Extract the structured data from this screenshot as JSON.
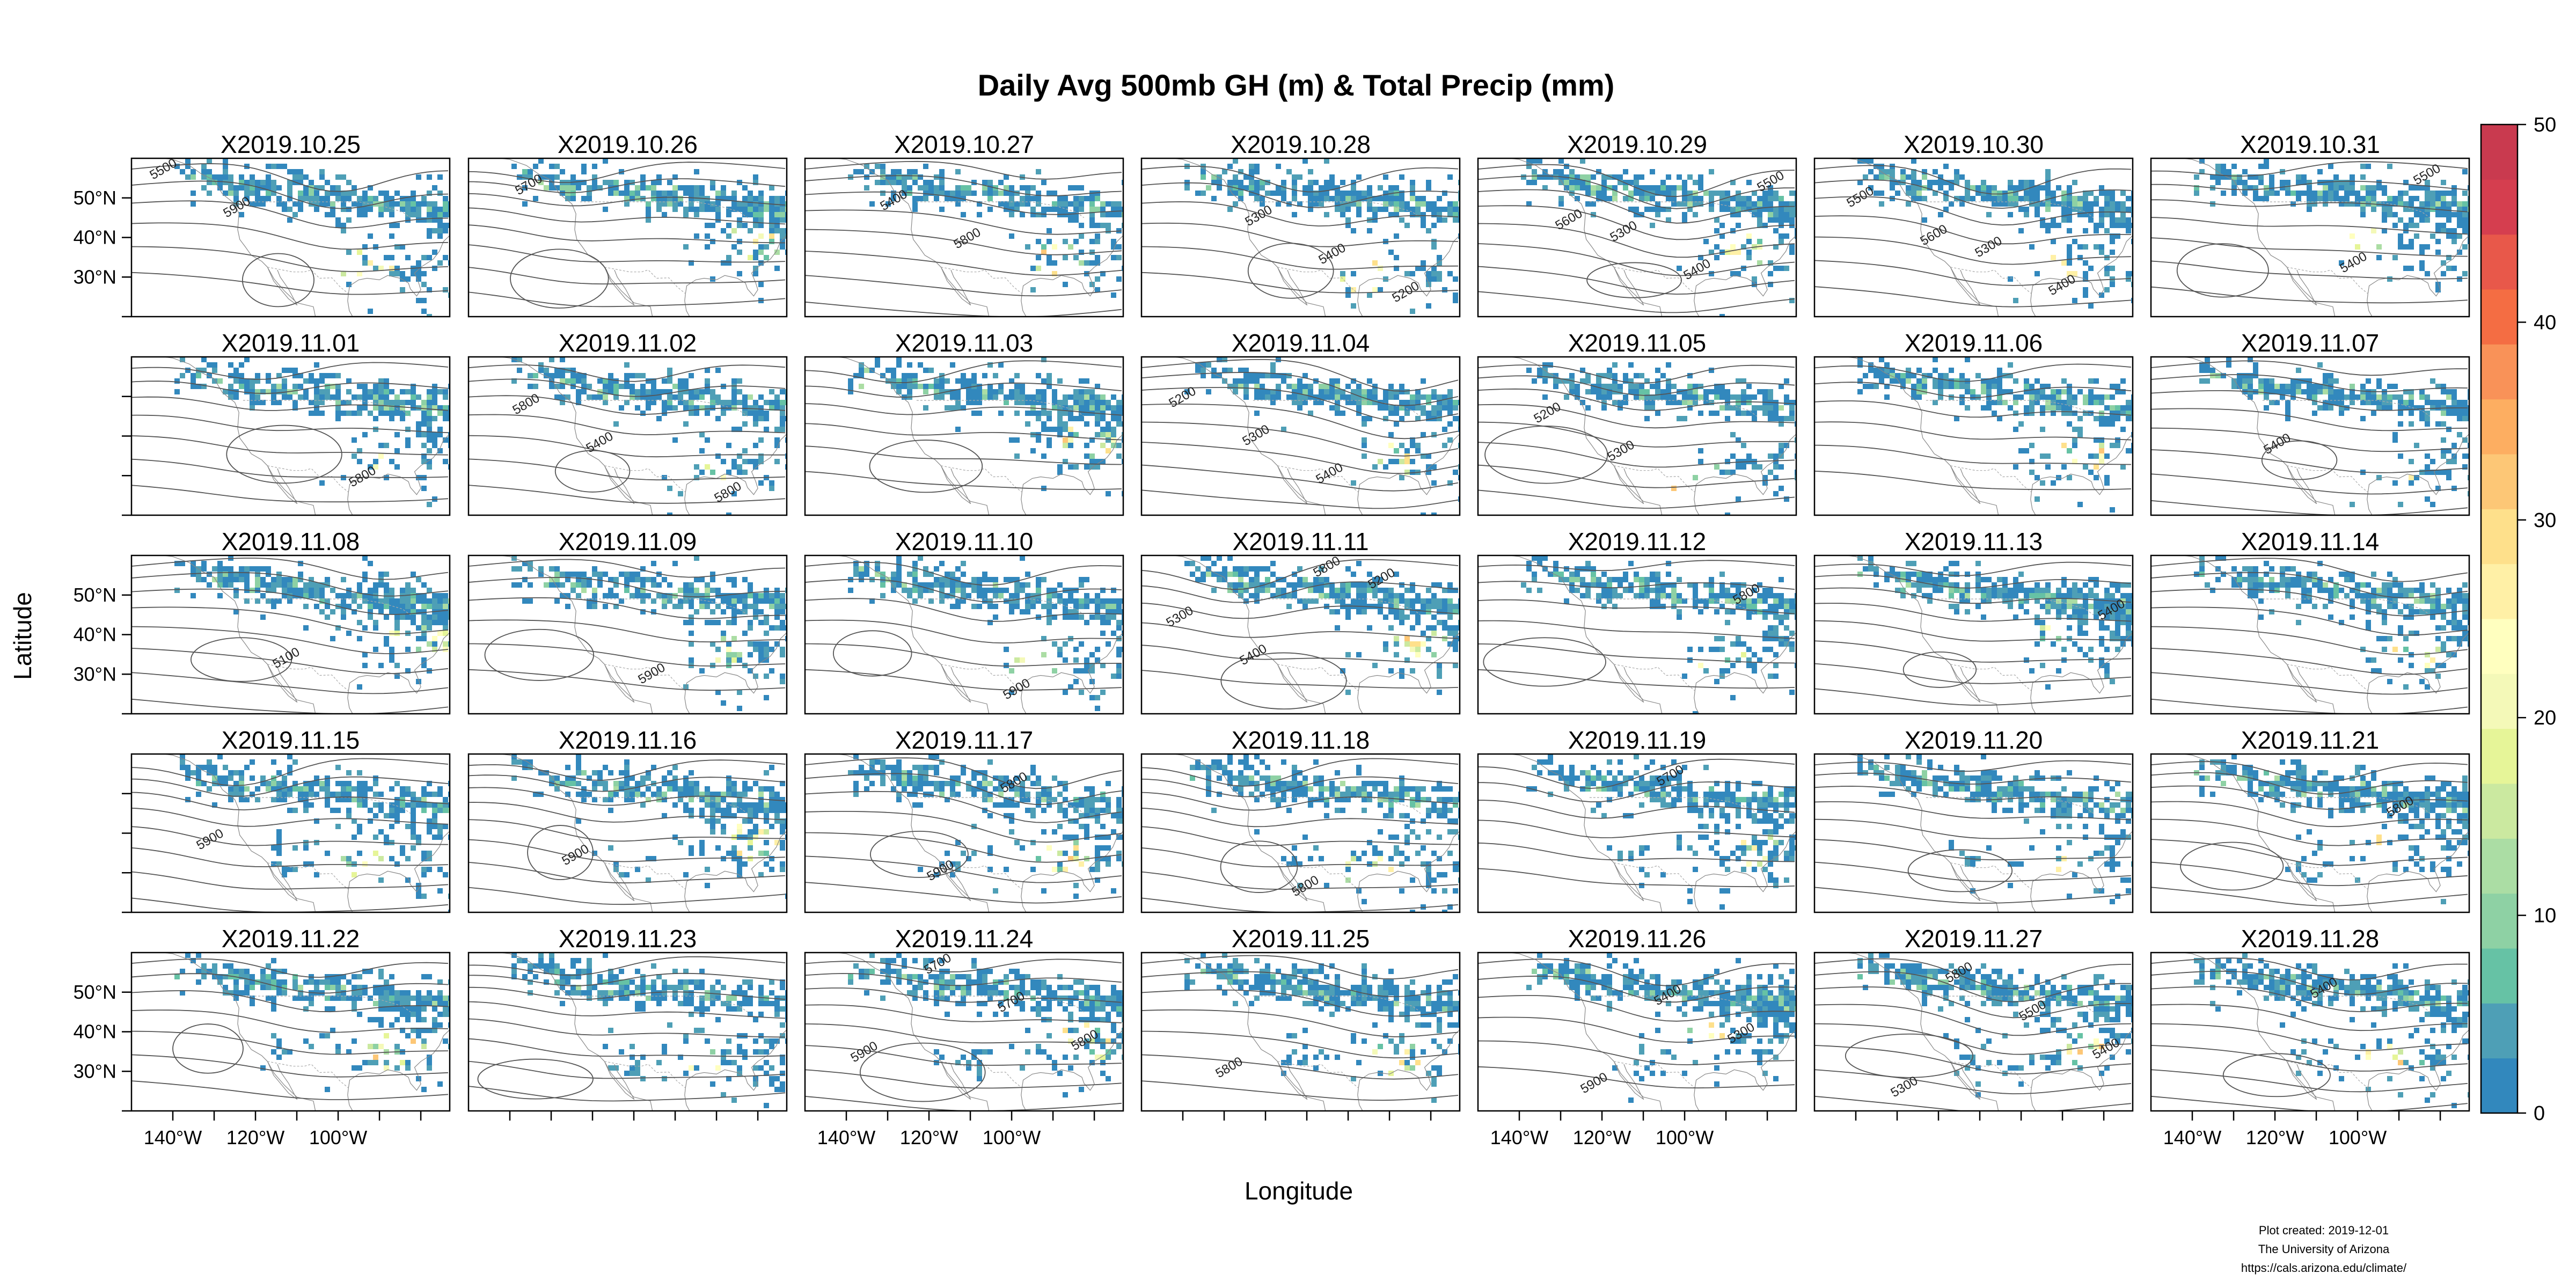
{
  "title": "Daily Avg 500mb GH (m) & Total Precip (mm)",
  "ylabel": "Latitude",
  "xlabel": "Longitude",
  "panels": [
    {
      "date": "X2019.10.25",
      "contours": [
        "5500",
        "5900"
      ]
    },
    {
      "date": "X2019.10.26",
      "contours": [
        "5700"
      ]
    },
    {
      "date": "X2019.10.27",
      "contours": [
        "5400",
        "5800"
      ]
    },
    {
      "date": "X2019.10.28",
      "contours": [
        "5300",
        "5400",
        "5200"
      ]
    },
    {
      "date": "X2019.10.29",
      "contours": [
        "5300",
        "5400",
        "5500",
        "5600"
      ]
    },
    {
      "date": "X2019.10.30",
      "contours": [
        "5300",
        "5400",
        "5500",
        "5600"
      ]
    },
    {
      "date": "X2019.10.31",
      "contours": [
        "5400",
        "5500"
      ]
    },
    {
      "date": "X2019.11.01",
      "contours": [
        "5800"
      ]
    },
    {
      "date": "X2019.11.02",
      "contours": [
        "5800",
        "5800",
        "5400"
      ]
    },
    {
      "date": "X2019.11.03",
      "contours": []
    },
    {
      "date": "X2019.11.04",
      "contours": [
        "5200",
        "5300",
        "5400"
      ]
    },
    {
      "date": "X2019.11.05",
      "contours": [
        "5200",
        "5300"
      ]
    },
    {
      "date": "X2019.11.06",
      "contours": []
    },
    {
      "date": "X2019.11.07",
      "contours": [
        "5400"
      ]
    },
    {
      "date": "X2019.11.08",
      "contours": [
        "5100"
      ]
    },
    {
      "date": "X2019.11.09",
      "contours": [
        "5900"
      ]
    },
    {
      "date": "X2019.11.10",
      "contours": [
        "5900"
      ]
    },
    {
      "date": "X2019.11.11",
      "contours": [
        "5200",
        "5300",
        "5400",
        "5800"
      ]
    },
    {
      "date": "X2019.11.12",
      "contours": [
        "5800"
      ]
    },
    {
      "date": "X2019.11.13",
      "contours": [
        "5400"
      ]
    },
    {
      "date": "X2019.11.14",
      "contours": []
    },
    {
      "date": "X2019.11.15",
      "contours": [
        "5900"
      ]
    },
    {
      "date": "X2019.11.16",
      "contours": [
        "5900"
      ]
    },
    {
      "date": "X2019.11.17",
      "contours": [
        "5900",
        "5800"
      ]
    },
    {
      "date": "X2019.11.18",
      "contours": [
        "5800"
      ]
    },
    {
      "date": "X2019.11.19",
      "contours": [
        "5700"
      ]
    },
    {
      "date": "X2019.11.20",
      "contours": []
    },
    {
      "date": "X2019.11.21",
      "contours": [
        "5800"
      ]
    },
    {
      "date": "X2019.11.22",
      "contours": []
    },
    {
      "date": "X2019.11.23",
      "contours": []
    },
    {
      "date": "X2019.11.24",
      "contours": [
        "5900",
        "5700",
        "5700",
        "5800"
      ]
    },
    {
      "date": "X2019.11.25",
      "contours": [
        "5800"
      ]
    },
    {
      "date": "X2019.11.26",
      "contours": [
        "5900",
        "5400",
        "5300"
      ]
    },
    {
      "date": "X2019.11.27",
      "contours": [
        "5800",
        "5500",
        "5400",
        "5300"
      ]
    },
    {
      "date": "X2019.11.28",
      "contours": [
        "5400"
      ]
    }
  ],
  "lat_ticks": [
    "50°N",
    "40°N",
    "30°N"
  ],
  "lon_ticks": [
    "140°W",
    "120°W",
    "100°W"
  ],
  "colorbar": {
    "min": 0,
    "max": 50,
    "ticks": [
      "0",
      "10",
      "20",
      "30",
      "40",
      "50"
    ],
    "colors": [
      "#3288bd",
      "#4e9fb6",
      "#66c2a5",
      "#8ed1a4",
      "#abdda4",
      "#cbe9a0",
      "#e6f598",
      "#f4f9b8",
      "#ffffbf",
      "#fff0a6",
      "#fee08b",
      "#fdc776",
      "#fdae61",
      "#f99258",
      "#f46d43",
      "#e8584a",
      "#d53e4f",
      "#c93a4f"
    ]
  },
  "footer": {
    "line1": "Plot created: 2019-12-01",
    "line2": "The University of Arizona",
    "line3": "https://cals.arizona.edu/climate/"
  }
}
